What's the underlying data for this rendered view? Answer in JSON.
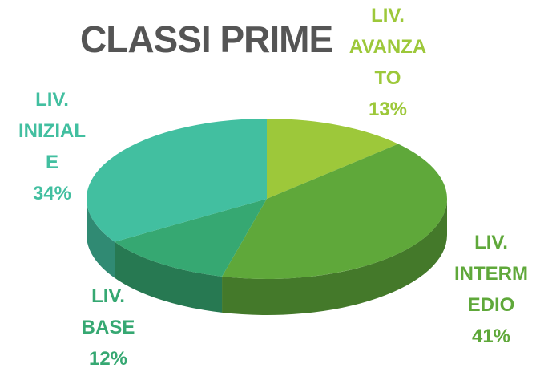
{
  "chart_data": {
    "type": "pie",
    "title": "CLASSI PRIME",
    "categories": [
      "LIV. AVANZATO",
      "LIV. INTERMEDIO",
      "LIV. BASE",
      "LIV. INIZIALE"
    ],
    "values": [
      13,
      41,
      12,
      34
    ],
    "value_labels": [
      "13%",
      "41%",
      "12%",
      "34%"
    ],
    "colors": [
      "#9dc83a",
      "#5fa83a",
      "#36a872",
      "#42bfa0"
    ]
  }
}
